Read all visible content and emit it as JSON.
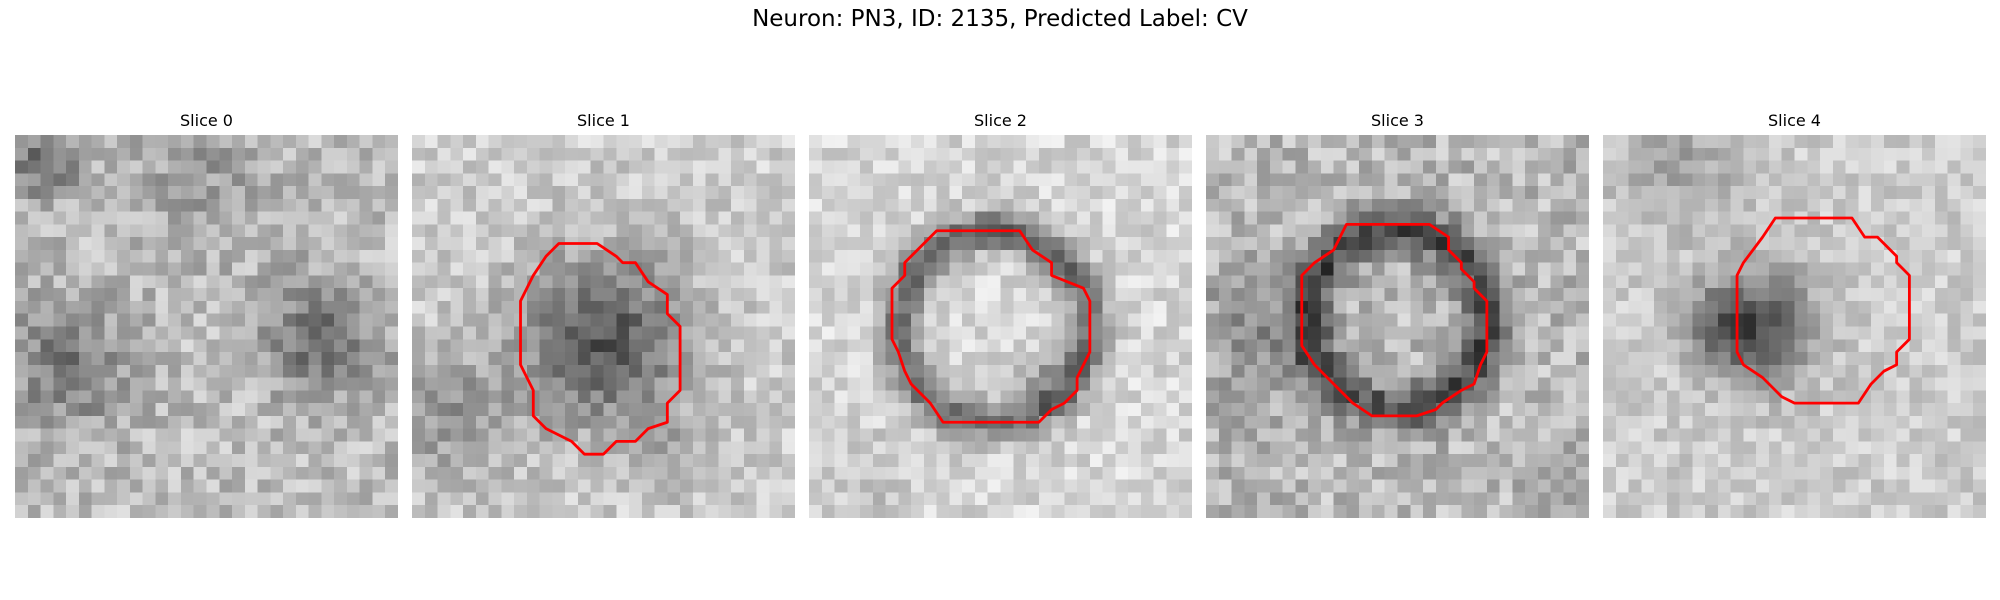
{
  "figure": {
    "title": "Neuron: PN3, ID: 2135, Predicted Label: CV",
    "contour_color": "#ff0000"
  },
  "panels": [
    {
      "label": "Slice 0",
      "has_contour": false
    },
    {
      "label": "Slice 1",
      "has_contour": true
    },
    {
      "label": "Slice 2",
      "has_contour": true
    },
    {
      "label": "Slice 3",
      "has_contour": true
    },
    {
      "label": "Slice 4",
      "has_contour": true
    }
  ]
}
